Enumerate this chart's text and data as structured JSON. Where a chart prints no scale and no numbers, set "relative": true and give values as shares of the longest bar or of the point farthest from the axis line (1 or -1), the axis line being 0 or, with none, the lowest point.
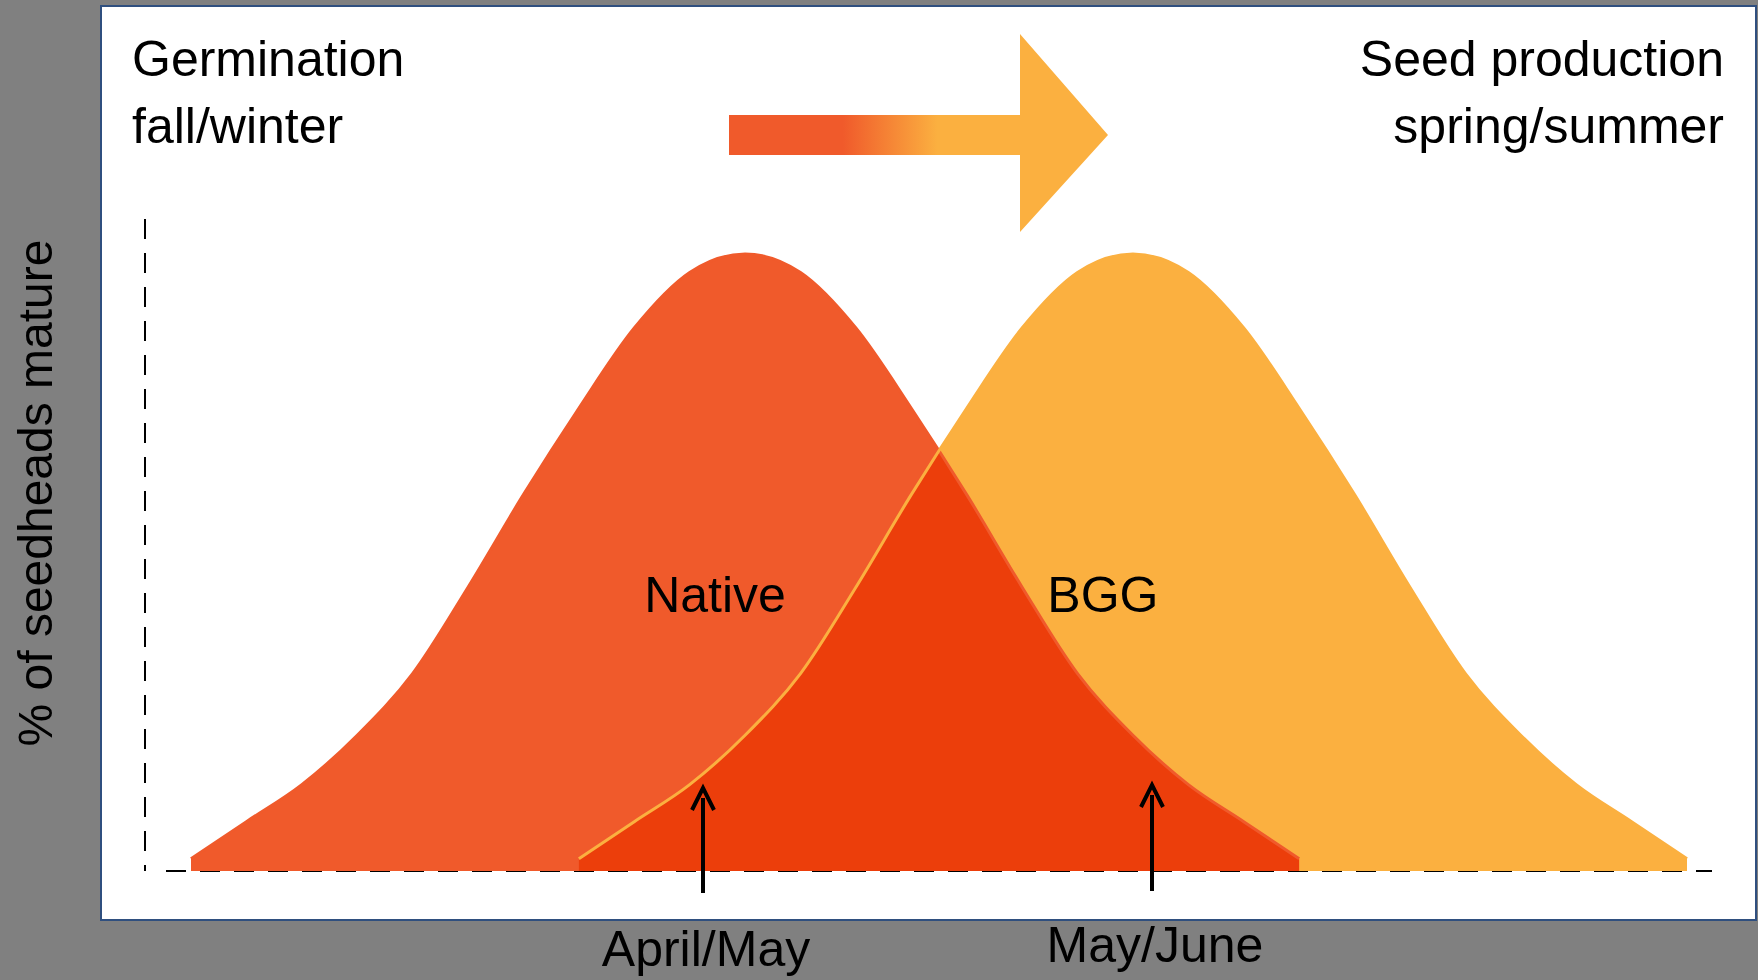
{
  "chart_data": {
    "type": "area",
    "relative": true,
    "ylabel": "% of seedheads mature",
    "categories": [
      null,
      null,
      null,
      null,
      null,
      null,
      null,
      null,
      null,
      null,
      null,
      null,
      null,
      null,
      null,
      null,
      null,
      null,
      null,
      null,
      null,
      null,
      null,
      null,
      null,
      null,
      null,
      null
    ],
    "series": [
      {
        "name": "Native",
        "color": "#f05a2b",
        "values": [
          0.02,
          0.08,
          0.14,
          0.22,
          0.32,
          0.46,
          0.61,
          0.75,
          0.88,
          0.97,
          1,
          0.97,
          0.88,
          0.75,
          0.61,
          0.46,
          0.32,
          0.22,
          0.14,
          0.08,
          0.02,
          null,
          null,
          null,
          null,
          null,
          null,
          null
        ]
      },
      {
        "name": "BGG",
        "color": "#fbb040",
        "values": [
          null,
          null,
          null,
          null,
          null,
          null,
          null,
          0.02,
          0.08,
          0.14,
          0.22,
          0.32,
          0.46,
          0.61,
          0.75,
          0.88,
          0.97,
          1,
          0.97,
          0.88,
          0.75,
          0.61,
          0.46,
          0.32,
          0.22,
          0.14,
          0.08,
          0.02
        ]
      }
    ],
    "annotations": [
      "Germination\nfall/winter",
      "Seed production\nspring/summer",
      "April/May",
      "May/June"
    ]
  }
}
